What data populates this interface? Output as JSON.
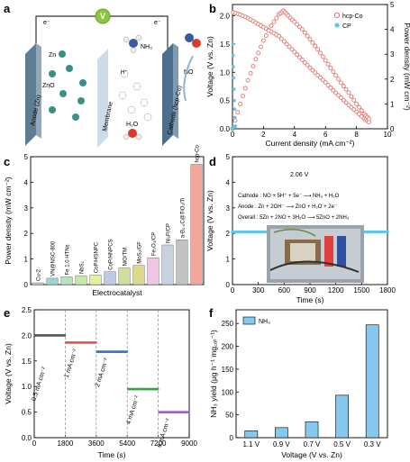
{
  "panels": {
    "a": {
      "label": "a",
      "circuit_symbol": "V",
      "electron_left": "e⁻",
      "electron_right": "e⁻",
      "anode": "Anode (Zn)",
      "membrane": "Membrane",
      "cathode": "Cathode (hcp-Co)",
      "zn": "Zn",
      "zno": "ZnO",
      "nh3": "NH₃",
      "no": "NO",
      "h2o": "H₂O",
      "hplus": "H⁺",
      "colors": {
        "anode": "#6f8ea3",
        "membrane": "#c7d8e6",
        "cathode": "#4d6e8c",
        "wire": "#333333",
        "meter": "#8cc63f",
        "ion": "#3b8f84"
      }
    },
    "b": {
      "label": "b",
      "xlabel": "Current density (mA cm⁻²)",
      "ylabel": "Voltage (V vs. Zn)",
      "y2label": "Power density (mW cm⁻²)",
      "legend": [
        "hcp-Co",
        "CP"
      ],
      "xticks": [
        "0",
        "2",
        "4",
        "6",
        "8",
        "10"
      ],
      "yticks": [
        "0.0",
        "0.5",
        "1.0",
        "1.5",
        "2.0"
      ],
      "y2ticks": [
        "0",
        "1",
        "2",
        "3",
        "4",
        "5"
      ]
    },
    "c": {
      "label": "c",
      "xlabel": "Electrocatalyst",
      "ylabel": "Power density (mW cm⁻²)",
      "yticks": [
        "0",
        "1",
        "2",
        "3",
        "4",
        "5"
      ]
    },
    "d": {
      "label": "d",
      "xlabel": "Time (s)",
      "ylabel": "Voltage (V vs. Zn)",
      "value_label": "2.06 V",
      "cathode_eq": "Cathode : NO + 5H⁺ + 5e⁻ ⟶ NH₃ + H₂O",
      "anode_eq": "Anode : Zn + 2OH⁻ ⟶ ZnO + H₂O + 2e⁻",
      "overall_eq": "Overall : 5Zn + 2NO + 3H₂O ⟶ 5ZnO + 2NH₃",
      "xticks": [
        "0",
        "300",
        "600",
        "900",
        "1200",
        "1500",
        "1800"
      ],
      "yticks": [
        "0",
        "1",
        "2",
        "3",
        "4",
        "5"
      ]
    },
    "e": {
      "label": "e",
      "xlabel": "Time (s)",
      "ylabel": "Voltage (V vs. Zn)",
      "xticks": [
        "0",
        "1800",
        "3600",
        "5400",
        "7200",
        "9000"
      ],
      "yticks": [
        "0.0",
        "0.5",
        "1.0",
        "1.5",
        "2.0",
        "2.5"
      ]
    },
    "f": {
      "label": "f",
      "xlabel": "Voltage (V vs. Zn)",
      "ylabel": "NH₃ yield (μg h⁻¹ mg꜀ₐₜ⁻¹)",
      "legend": "NH₃",
      "yticks": [
        "0",
        "50",
        "100",
        "150",
        "200",
        "250"
      ]
    }
  },
  "chart_data": [
    {
      "panel": "b",
      "type": "line",
      "xlabel": "Current density (mA cm⁻²)",
      "ylabel": "Voltage (V vs. Zn)",
      "y2label": "Power density (mW cm⁻²)",
      "xlim": [
        0,
        10
      ],
      "ylim": [
        0,
        2.2
      ],
      "y2lim": [
        0,
        5
      ],
      "legend_position": "top-right",
      "series": [
        {
          "name": "hcp-Co",
          "axis": "left",
          "color": "#e0766e",
          "x": [
            0.05,
            0.5,
            1.0,
            1.5,
            2.0,
            2.5,
            3.0,
            3.5,
            4.0,
            4.5,
            5.0,
            5.5,
            6.0,
            6.5,
            7.0,
            7.5,
            8.0,
            8.5,
            8.8
          ],
          "y": [
            2.06,
            2.02,
            1.96,
            1.88,
            1.8,
            1.72,
            1.64,
            1.5,
            1.36,
            1.22,
            1.08,
            0.95,
            0.82,
            0.68,
            0.55,
            0.42,
            0.3,
            0.18,
            0.12
          ]
        },
        {
          "name": "hcp-Co",
          "axis": "right",
          "color": "#e0766e",
          "x": [
            0,
            0.5,
            1.0,
            1.5,
            2.0,
            2.5,
            3.0,
            3.3,
            3.6,
            4.0,
            4.5,
            5.0,
            5.5,
            6.0,
            6.5,
            7.0,
            7.5,
            8.0,
            8.5,
            8.8
          ],
          "y": [
            0.0,
            1.0,
            1.95,
            2.8,
            3.55,
            4.15,
            4.6,
            4.75,
            4.55,
            4.3,
            4.0,
            3.6,
            3.2,
            2.75,
            2.3,
            1.85,
            1.45,
            1.0,
            0.6,
            0.4
          ]
        },
        {
          "name": "CP",
          "axis": "left",
          "color": "#5bc8e8",
          "x": [
            0.02,
            0.04,
            0.06,
            0.08,
            0.1,
            0.12,
            0.14,
            0.16
          ],
          "y": [
            1.5,
            1.3,
            1.1,
            0.9,
            0.7,
            0.5,
            0.35,
            0.2
          ]
        },
        {
          "name": "CP",
          "axis": "right",
          "color": "#5bc8e8",
          "x": [
            0.0,
            0.05,
            0.1,
            0.15,
            0.2
          ],
          "y": [
            0.0,
            0.05,
            0.08,
            0.1,
            0.11
          ]
        }
      ]
    },
    {
      "panel": "c",
      "type": "bar",
      "xlabel": "Electrocatalyst",
      "ylabel": "Power density (mW cm⁻²)",
      "ylim": [
        0,
        5
      ],
      "categories": [
        "Cu-2",
        "VN@NSC-800",
        "Fe 1.0 HTNs",
        "NbS₂",
        "CoP/HSNPC",
        "CoP/HNPCS",
        "NiO/TM",
        "MoS₂/GF",
        "Fe₂O₃/CP",
        "Ni₂P/CP",
        "a-B₂.₆C@TiO₂/Ti",
        "hcp-Co"
      ],
      "values": [
        0.07,
        0.25,
        0.3,
        0.35,
        0.38,
        0.5,
        0.65,
        0.75,
        1.05,
        1.55,
        1.75,
        4.7
      ],
      "colors": [
        "#c9d5dd",
        "#9fd4d4",
        "#b6e3c4",
        "#c7e9a8",
        "#e6efa0",
        "#bfc9e6",
        "#cfdfa2",
        "#ddd98a",
        "#f0c6e4",
        "#c8d1df",
        "#c2c2c2",
        "#f4a59c"
      ],
      "label_colors": [
        "#777777",
        "#3aa0a0",
        "#3aa06a",
        "#6aa03a",
        "#8a9a20",
        "#5566aa",
        "#66882a",
        "#9a8a20",
        "#c050a8",
        "#3a6e9a",
        "#333333",
        "#e06a60"
      ]
    },
    {
      "panel": "d",
      "type": "line",
      "xlabel": "Time (s)",
      "ylabel": "Voltage (V vs. Zn)",
      "xlim": [
        0,
        1800
      ],
      "ylim": [
        0,
        5
      ],
      "series": [
        {
          "name": "",
          "color": "#5bc8e8",
          "start": 0,
          "end": 1800,
          "step": 30,
          "value": 2.06
        }
      ]
    },
    {
      "panel": "e",
      "type": "line",
      "xlabel": "Time (s)",
      "ylabel": "Voltage (V vs. Zn)",
      "xlim": [
        0,
        9000
      ],
      "ylim": [
        0,
        2.5
      ],
      "segments": [
        {
          "label": "0.5 mA cm⁻²",
          "color": "#555555",
          "t0": 0,
          "t1": 1800,
          "v": 2.0
        },
        {
          "label": "1 mA cm⁻²",
          "color": "#e0524a",
          "t0": 1800,
          "t1": 3600,
          "v": 1.86
        },
        {
          "label": "2 mA cm⁻²",
          "color": "#3a78c0",
          "t0": 3600,
          "t1": 5400,
          "v": 1.68
        },
        {
          "label": "4 mA cm⁻²",
          "color": "#3aa048",
          "t0": 5400,
          "t1": 7200,
          "v": 0.95
        },
        {
          "label": "6 mA cm⁻²",
          "color": "#9a5cc8",
          "t0": 7200,
          "t1": 9000,
          "v": 0.5
        }
      ]
    },
    {
      "panel": "f",
      "type": "bar",
      "xlabel": "Voltage (V vs. Zn)",
      "ylabel": "NH₃ yield (μg h⁻¹ mg꜀ₐₜ⁻¹)",
      "ylim": [
        0,
        280
      ],
      "categories": [
        "1.1 V",
        "0.9 V",
        "0.7 V",
        "0.5 V",
        "0.3 V"
      ],
      "series": [
        {
          "name": "NH₃",
          "values": [
            15,
            22,
            35,
            93,
            247
          ],
          "color": "#86c8ee"
        }
      ]
    }
  ]
}
